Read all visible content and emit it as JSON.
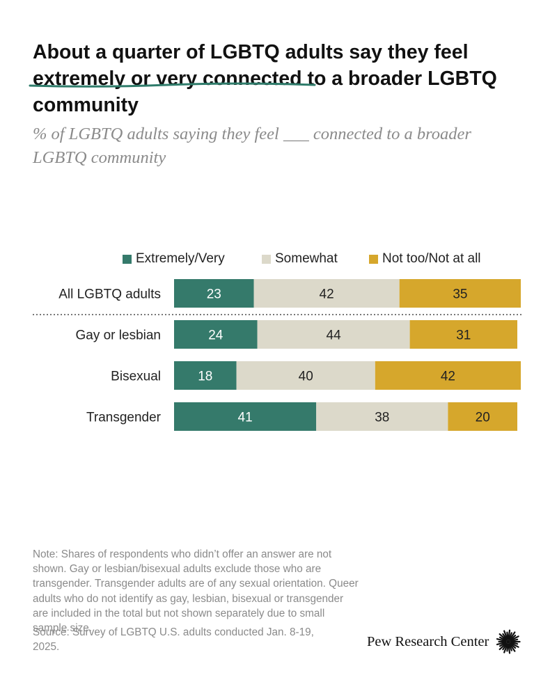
{
  "title": {
    "before": "About a quarter of LGBTQ adults say they feel ",
    "highlight": "extremely or very connected",
    "after": " to a broader LGBTQ community"
  },
  "subtitle": "% of LGBTQ adults saying they feel ___ connected to a broader LGBTQ community",
  "colors": {
    "extremely_very": "#357a6b",
    "somewhat": "#dcd9ca",
    "not_too": "#d6a72c",
    "underline": "#2f7c6b"
  },
  "chart_data": {
    "type": "bar",
    "orientation": "horizontal",
    "stacked": true,
    "categories": [
      "All LGBTQ adults",
      "Gay or lesbian",
      "Bisexual",
      "Transgender"
    ],
    "series": [
      {
        "name": "Extremely/Very",
        "values": [
          23,
          24,
          18,
          41
        ]
      },
      {
        "name": "Somewhat",
        "values": [
          42,
          44,
          40,
          38
        ]
      },
      {
        "name": "Not too/Not at all",
        "values": [
          35,
          31,
          42,
          20
        ]
      }
    ],
    "xlim": [
      0,
      100
    ],
    "title": "About a quarter of LGBTQ adults say they feel extremely or very connected to a broader LGBTQ community",
    "legend": "top",
    "separator_after": "All LGBTQ adults"
  },
  "note": "Note: Shares of respondents who didn’t offer an answer are not shown. Gay or lesbian/bisexual adults exclude those who are transgender. Transgender adults are of any sexual orientation. Queer adults who do not identify as gay, lesbian, bisexual or transgender are included in the total but not shown separately due to small sample size.",
  "source": "Source: Survey of LGBTQ U.S. adults conducted Jan. 8-19, 2025.",
  "logo": {
    "text": "Pew Research Center",
    "icon": "pew-sunburst-icon"
  }
}
